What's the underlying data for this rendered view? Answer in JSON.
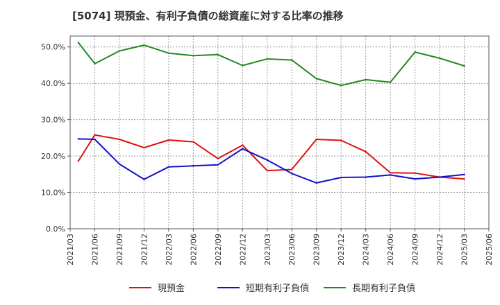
{
  "title": "[5074]  現預金、有利子負債の総資産に対する比率の推移",
  "chart_data": {
    "type": "line",
    "title": "[5074]  現預金、有利子負債の総資産に対する比率の推移",
    "xlabel": "",
    "ylabel": "",
    "ylim": [
      0,
      53
    ],
    "y_ticks": [
      0,
      10,
      20,
      30,
      40,
      50
    ],
    "y_tick_labels": [
      "0.0%",
      "10.0%",
      "20.0%",
      "30.0%",
      "40.0%",
      "50.0%"
    ],
    "x_ticks": [
      "2021/03",
      "2021/06",
      "2021/09",
      "2021/12",
      "2022/03",
      "2022/06",
      "2022/09",
      "2022/12",
      "2023/03",
      "2023/06",
      "2023/09",
      "2023/12",
      "2024/03",
      "2024/06",
      "2024/09",
      "2024/12",
      "2025/03",
      "2025/06"
    ],
    "x": [
      "2021/04",
      "2021/06",
      "2021/09",
      "2021/12",
      "2022/03",
      "2022/06",
      "2022/09",
      "2022/12",
      "2023/03",
      "2023/06",
      "2023/09",
      "2023/12",
      "2024/03",
      "2024/06",
      "2024/09",
      "2024/12",
      "2025/03"
    ],
    "series": [
      {
        "name": "現預金",
        "color": "#dd1111",
        "values": [
          18.6,
          25.8,
          24.6,
          22.3,
          24.4,
          23.9,
          19.3,
          23.0,
          16.0,
          16.3,
          24.6,
          24.3,
          21.2,
          15.4,
          15.3,
          14.2,
          13.7
        ]
      },
      {
        "name": "短期有利子負債",
        "color": "#1111cc",
        "values": [
          24.7,
          24.6,
          17.8,
          13.6,
          17.0,
          17.3,
          17.6,
          22.0,
          18.9,
          15.2,
          12.6,
          14.1,
          14.2,
          14.8,
          13.7,
          14.2,
          14.9
        ]
      },
      {
        "name": "長期有利子負債",
        "color": "#228822",
        "values": [
          51.2,
          45.4,
          48.9,
          50.5,
          48.3,
          47.6,
          47.9,
          44.9,
          46.7,
          46.4,
          41.3,
          39.4,
          41.0,
          40.3,
          48.6,
          46.9,
          44.8
        ]
      }
    ],
    "grid": true,
    "legend_position": "bottom"
  }
}
